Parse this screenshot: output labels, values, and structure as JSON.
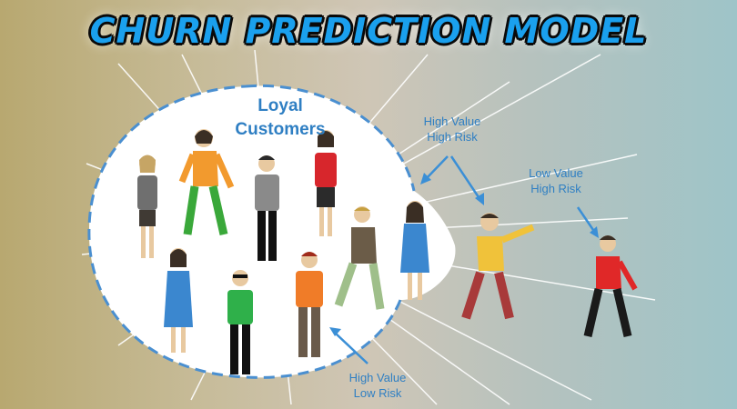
{
  "title": "CHURN PREDICTION MODEL",
  "labels": {
    "loyal_customers": [
      "Loyal",
      "Customers"
    ],
    "high_value_high_risk": [
      "High Value",
      "High Risk"
    ],
    "low_value_high_risk": [
      "Low Value",
      "High Risk"
    ],
    "high_value_low_risk": [
      "High Value",
      "Low Risk"
    ]
  },
  "colors": {
    "title_fill": "#1aa0ee",
    "label_blue": "#2f7fc3",
    "circle_dash": "#4a8fd0"
  }
}
